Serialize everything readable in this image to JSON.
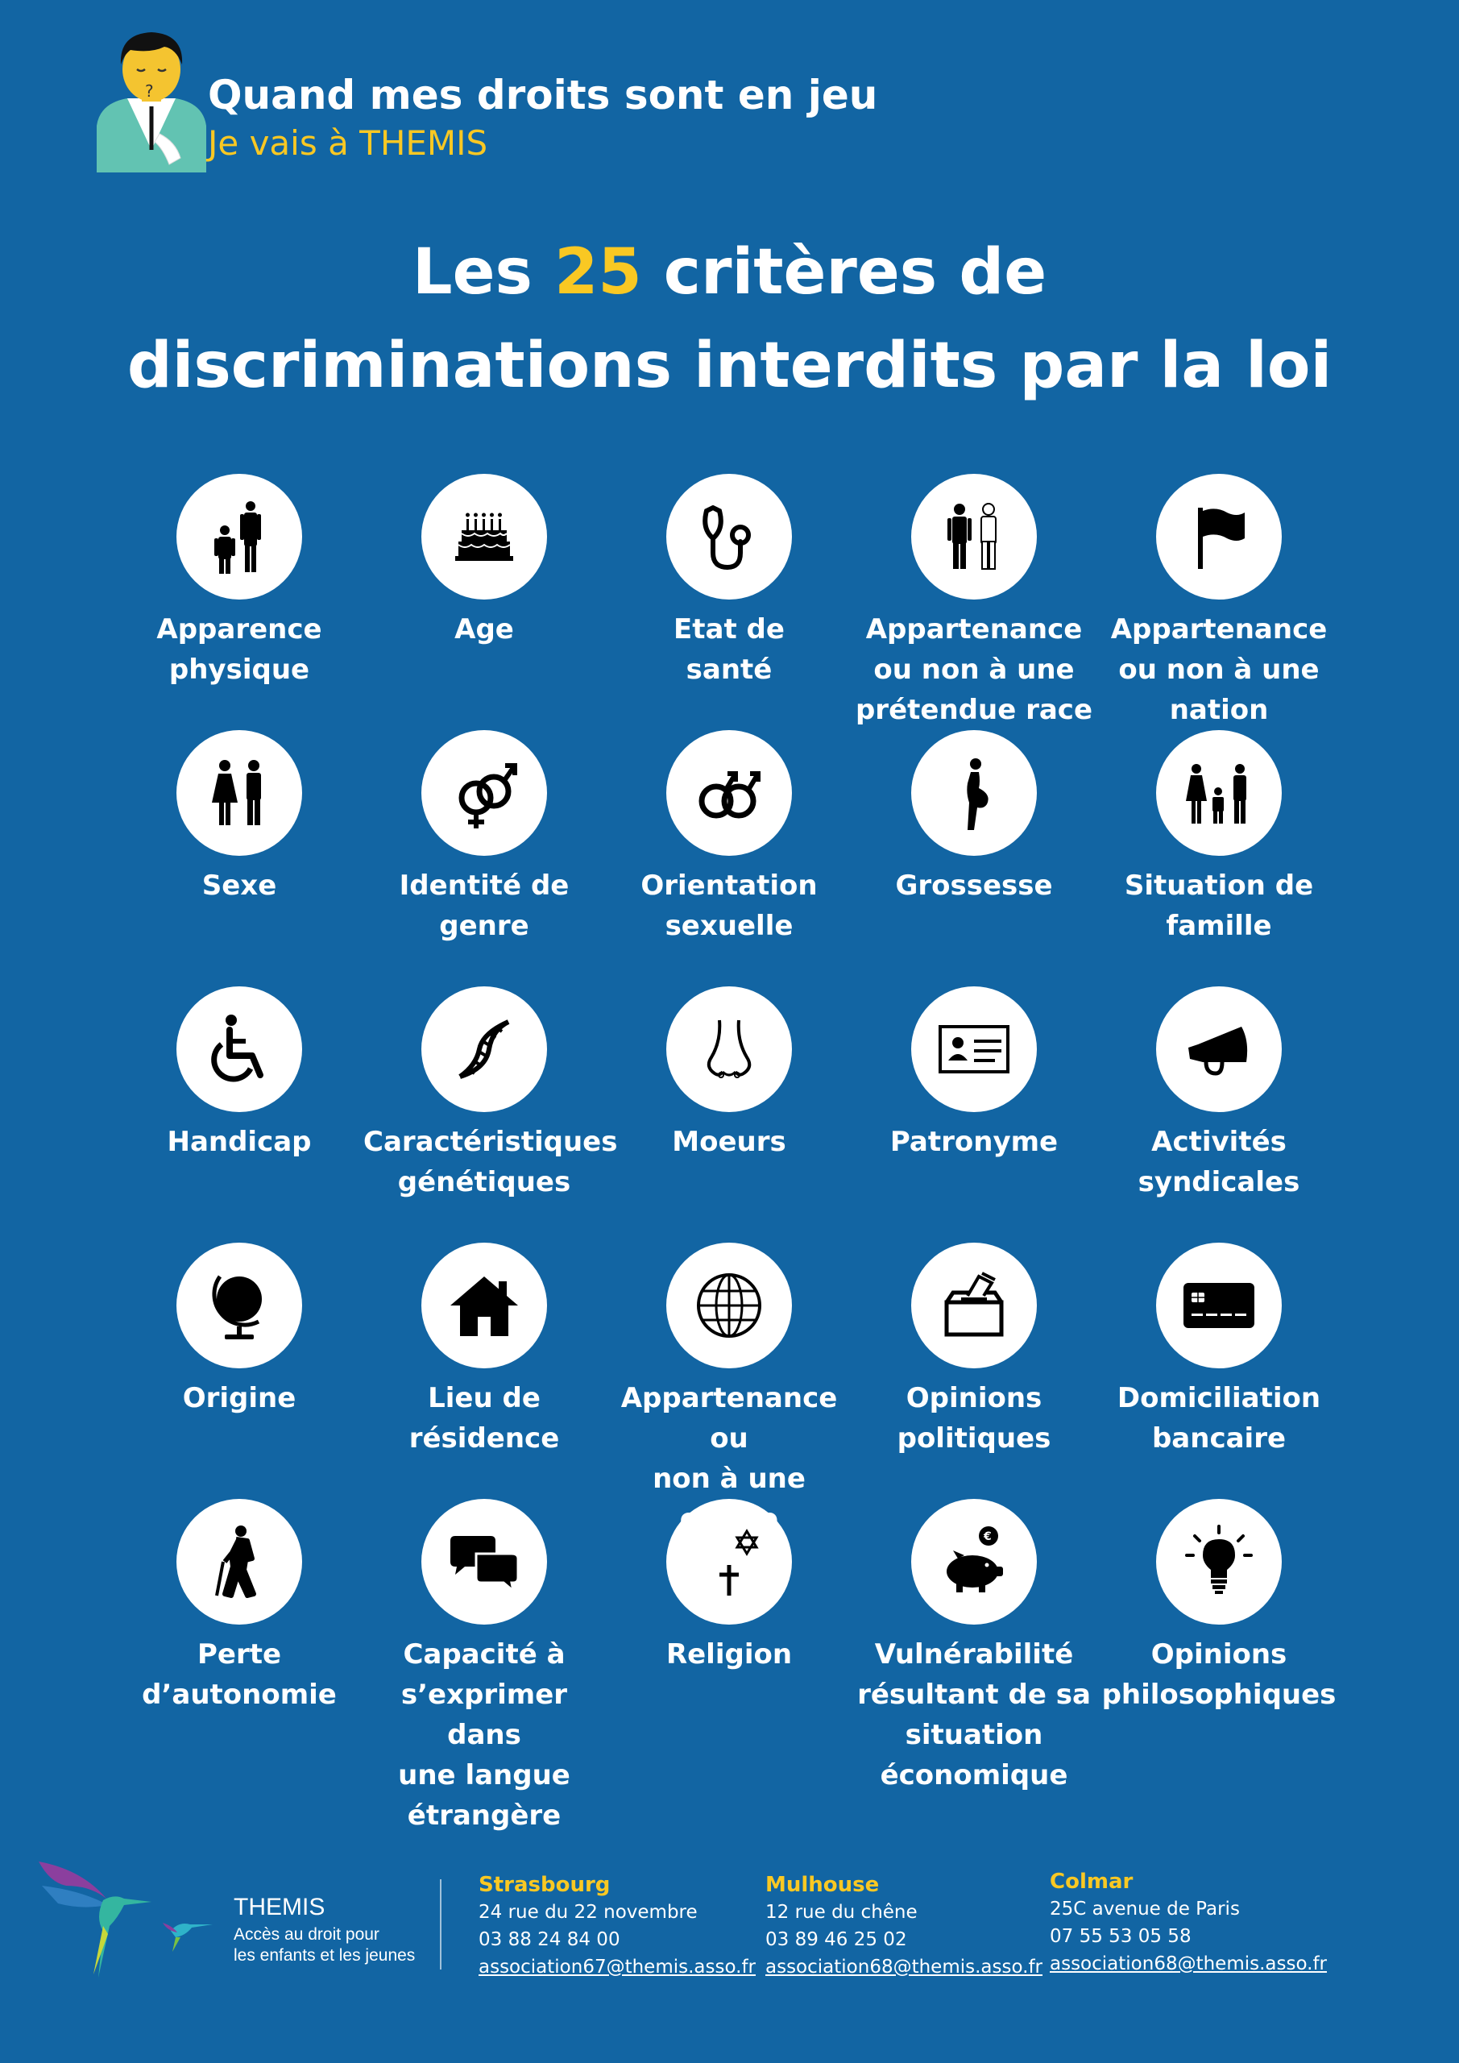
{
  "header": {
    "tagline": "Quand mes droits sont en jeu",
    "subtagline": "Je vais à THEMIS"
  },
  "title": {
    "prefix": "Les ",
    "number": "25",
    "line1_suffix": " critères de",
    "line2": "discriminations interdits par la loi"
  },
  "criteria": [
    {
      "label": "Apparence\nphysique",
      "icon": "people-height-icon"
    },
    {
      "label": "Age",
      "icon": "birthday-cake-icon"
    },
    {
      "label": "Etat de\nsanté",
      "icon": "stethoscope-icon"
    },
    {
      "label": "Appartenance\nou non à une\nprétendue race",
      "icon": "two-men-icon"
    },
    {
      "label": "Appartenance\nou non à une\nnation",
      "icon": "flag-icon"
    },
    {
      "label": "Sexe",
      "icon": "woman-man-icon"
    },
    {
      "label": "Identité de\ngenre",
      "icon": "gender-symbols-icon"
    },
    {
      "label": "Orientation\nsexuelle",
      "icon": "male-couple-symbol-icon"
    },
    {
      "label": "Grossesse",
      "icon": "pregnant-woman-icon"
    },
    {
      "label": "Situation de\nfamille",
      "icon": "family-icon"
    },
    {
      "label": "Handicap",
      "icon": "wheelchair-icon"
    },
    {
      "label": "Caractéristiques\ngénétiques",
      "icon": "dna-icon"
    },
    {
      "label": "Moeurs",
      "icon": "nose-icon"
    },
    {
      "label": "Patronyme",
      "icon": "id-card-icon"
    },
    {
      "label": "Activités\nsyndicales",
      "icon": "megaphone-icon"
    },
    {
      "label": "Origine",
      "icon": "globe-stand-icon"
    },
    {
      "label": "Lieu de\nrésidence",
      "icon": "house-icon"
    },
    {
      "label": "Appartenance ou\nnon à une ethnie",
      "icon": "world-grid-icon"
    },
    {
      "label": "Opinions\npolitiques",
      "icon": "ballot-box-icon"
    },
    {
      "label": "Domiciliation\nbancaire",
      "icon": "bank-card-icon"
    },
    {
      "label": "Perte\nd’autonomie",
      "icon": "elderly-person-icon"
    },
    {
      "label": "Capacité à\ns’exprimer dans\nune langue\nétrangère",
      "icon": "speech-bubbles-icon"
    },
    {
      "label": "Religion",
      "icon": "religion-symbols-icon"
    },
    {
      "label": "Vulnérabilité\nrésultant de sa\nsituation\néconomique",
      "icon": "piggy-bank-icon"
    },
    {
      "label": "Opinions\nphilosophiques",
      "icon": "light-bulb-icon"
    }
  ],
  "footer": {
    "org_name": "THEMIS",
    "org_desc": "Accès au droit pour\nles enfants et les jeunes",
    "offices": [
      {
        "city": "Strasbourg",
        "address": "24 rue du 22 novembre",
        "phone": "03 88 24 84 00",
        "email": "association67@themis.asso.fr"
      },
      {
        "city": "Mulhouse",
        "address": "12 rue du chêne",
        "phone": "03 89 46 25 02",
        "email": "association68@themis.asso.fr"
      },
      {
        "city": "Colmar",
        "address": "25C avenue de Paris",
        "phone": "07 55 53 05 58",
        "email": "association68@themis.asso.fr"
      }
    ]
  },
  "colors": {
    "background": "#1265a3",
    "accent": "#f9c823",
    "text": "#ffffff"
  }
}
